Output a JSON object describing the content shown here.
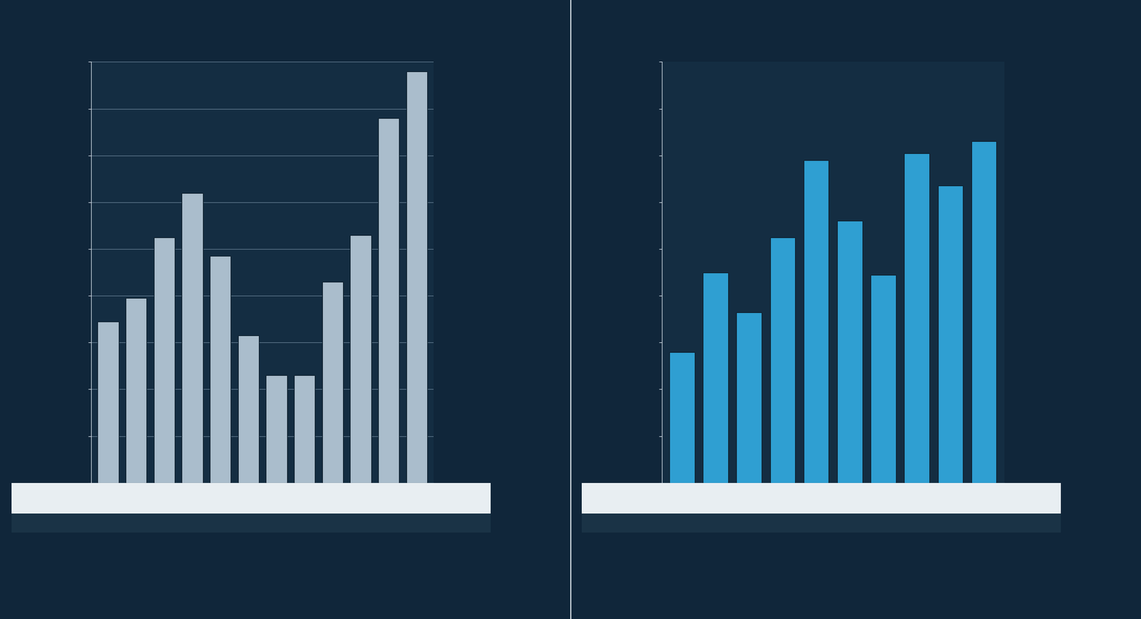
{
  "chart_data": [
    {
      "type": "bar",
      "categories": [
        null,
        null,
        null,
        null,
        null,
        null,
        null,
        null,
        null,
        null,
        null,
        null
      ],
      "values": [
        6.9,
        7.9,
        10.5,
        12.4,
        9.7,
        6.3,
        4.6,
        4.6,
        8.6,
        10.6,
        15.6,
        17.6
      ],
      "color": "#aabdcc",
      "ylim": [
        0,
        18
      ],
      "yticks": [
        0,
        2,
        4,
        6,
        8,
        10,
        12,
        14,
        16,
        18
      ],
      "grid": true,
      "tick_labels": false
    },
    {
      "type": "bar",
      "categories": [
        null,
        null,
        null,
        null,
        null,
        null,
        null,
        null,
        null,
        null
      ],
      "values": [
        5.6,
        9.0,
        7.3,
        10.5,
        13.8,
        11.2,
        8.9,
        14.1,
        12.7,
        14.6
      ],
      "color": "#2f9fd2",
      "ylim": [
        0,
        18
      ],
      "yticks": [
        0,
        2,
        4,
        6,
        8,
        10,
        12,
        14,
        16,
        18
      ],
      "grid": false,
      "tick_labels": false
    }
  ]
}
